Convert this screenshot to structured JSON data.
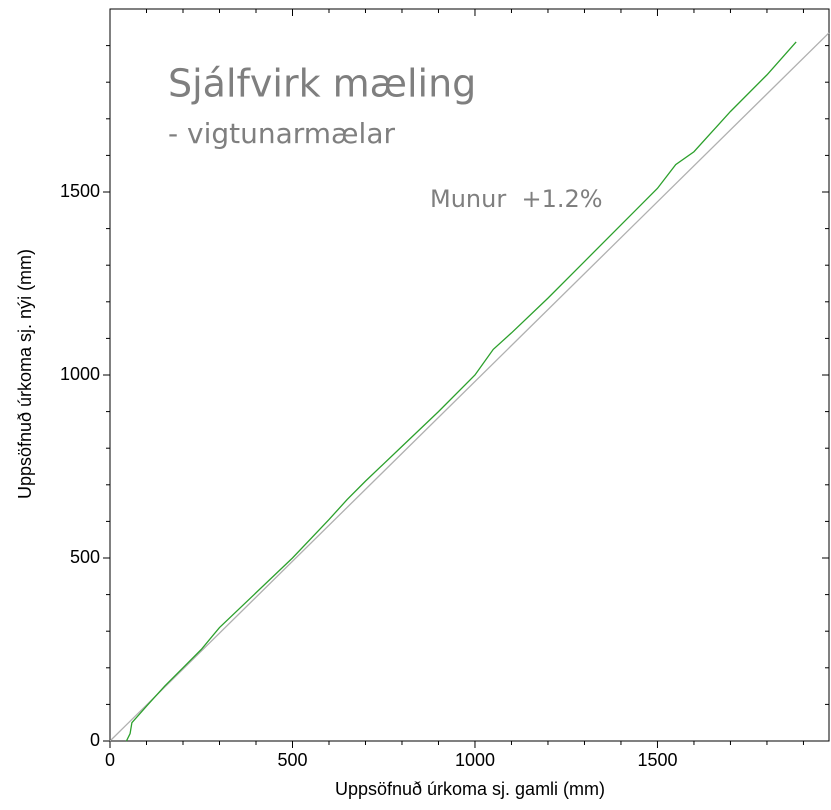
{
  "chart_data": {
    "type": "line",
    "title": "Sjálfvirk mæling",
    "subtitle": "- vigtunarmælar",
    "annotation": "Munur  +1.2%",
    "x_label": "Uppsöfnuð úrkoma sj. gamli (mm)",
    "y_label": "Uppsöfnuð úrkoma sj. nýi (mm)",
    "xlim": [
      0,
      1970
    ],
    "ylim": [
      0,
      2000
    ],
    "xticks": [
      0,
      500,
      1000,
      1500
    ],
    "yticks": [
      0,
      500,
      1000,
      1500
    ],
    "xminorticks": [
      100,
      200,
      300,
      400,
      600,
      700,
      800,
      900,
      1100,
      1200,
      1300,
      1400,
      1600,
      1700,
      1800,
      1900
    ],
    "yminorticks": [
      100,
      200,
      300,
      400,
      600,
      700,
      800,
      900,
      1100,
      1200,
      1300,
      1400,
      1600,
      1700,
      1800,
      1900
    ],
    "series": [
      {
        "color": "#b0b0b0",
        "x": [
          0,
          1970
        ],
        "values": [
          0,
          1935
        ]
      },
      {
        "color": "#2ca02c",
        "x": [
          45,
          55,
          60,
          100,
          150,
          200,
          250,
          300,
          400,
          500,
          600,
          650,
          700,
          800,
          900,
          1000,
          1050,
          1100,
          1200,
          1300,
          1400,
          1500,
          1550,
          1600,
          1650,
          1700,
          1800,
          1880
        ],
        "values": [
          0,
          20,
          50,
          95,
          150,
          200,
          250,
          310,
          405,
          500,
          605,
          660,
          710,
          805,
          900,
          1000,
          1070,
          1115,
          1210,
          1310,
          1410,
          1510,
          1575,
          1610,
          1665,
          1720,
          1820,
          1910
        ]
      }
    ]
  }
}
